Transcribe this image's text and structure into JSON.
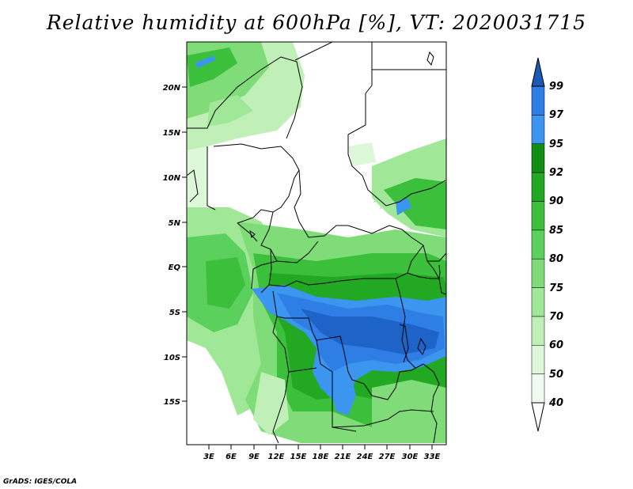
{
  "title": "Relative humidity at 600hPa [%], VT: 2020031715",
  "credit": "GrADS: IGES/COLA",
  "lat_labels": [
    "20N",
    "15N",
    "10N",
    "5N",
    "EQ",
    "5S",
    "10S",
    "15S"
  ],
  "lon_labels": [
    "3E",
    "6E",
    "9E",
    "12E",
    "15E",
    "18E",
    "21E",
    "24E",
    "27E",
    "30E",
    "33E"
  ],
  "colorbar": {
    "levels": [
      "40",
      "50",
      "60",
      "70",
      "75",
      "80",
      "85",
      "90",
      "92",
      "95",
      "97",
      "99"
    ],
    "colors": [
      "#f0fcf0",
      "#dcf8d8",
      "#c0f0b8",
      "#a0e898",
      "#80dc78",
      "#5cd05c",
      "#3cc03c",
      "#22a822",
      "#138c13",
      "#3c96f0",
      "#2f7ee6",
      "#1e64c8"
    ]
  }
}
